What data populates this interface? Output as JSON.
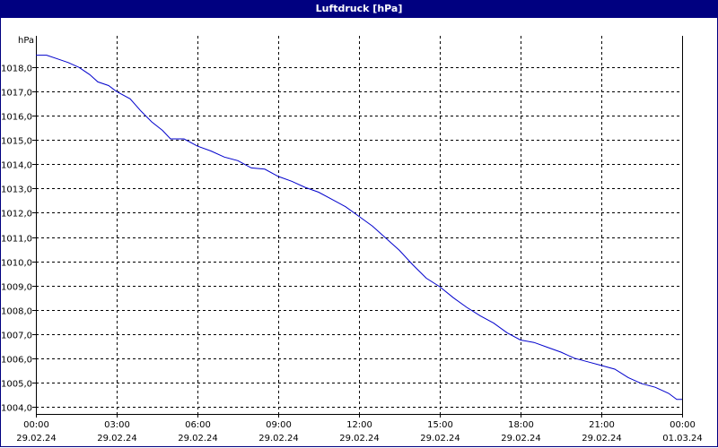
{
  "window": {
    "title": "Luftdruck [hPa]"
  },
  "colors": {
    "titlebar": "#000080",
    "series": "#0000cc",
    "grid": "#000000"
  },
  "chart_data": {
    "type": "line",
    "title": "Luftdruck [hPa]",
    "ylabel": "hPa",
    "xlabel": "",
    "ylim": [
      1003.7,
      1019.3
    ],
    "xlim_hours": [
      0,
      24
    ],
    "grid": true,
    "grid_style": "dashed",
    "legend": "none",
    "x_ticks": [
      {
        "hours": 0,
        "time": "00:00",
        "date": "29.02.24"
      },
      {
        "hours": 3,
        "time": "03:00",
        "date": "29.02.24"
      },
      {
        "hours": 6,
        "time": "06:00",
        "date": "29.02.24"
      },
      {
        "hours": 9,
        "time": "09:00",
        "date": "29.02.24"
      },
      {
        "hours": 12,
        "time": "12:00",
        "date": "29.02.24"
      },
      {
        "hours": 15,
        "time": "15:00",
        "date": "29.02.24"
      },
      {
        "hours": 18,
        "time": "18:00",
        "date": "29.02.24"
      },
      {
        "hours": 21,
        "time": "21:00",
        "date": "29.02.24"
      },
      {
        "hours": 24,
        "time": "00:00",
        "date": "01.03.24"
      }
    ],
    "y_ticks": [
      {
        "value": 1018,
        "label": "1018,0"
      },
      {
        "value": 1017,
        "label": "1017,0"
      },
      {
        "value": 1016,
        "label": "1016,0"
      },
      {
        "value": 1015,
        "label": "1015,0"
      },
      {
        "value": 1014,
        "label": "1014,0"
      },
      {
        "value": 1013,
        "label": "1013,0"
      },
      {
        "value": 1012,
        "label": "1012,0"
      },
      {
        "value": 1011,
        "label": "1011,0"
      },
      {
        "value": 1010,
        "label": "1010,0"
      },
      {
        "value": 1009,
        "label": "1009,0"
      },
      {
        "value": 1008,
        "label": "1008,0"
      },
      {
        "value": 1007,
        "label": "1007,0"
      },
      {
        "value": 1006,
        "label": "1006,0"
      },
      {
        "value": 1005,
        "label": "1005,0"
      },
      {
        "value": 1004,
        "label": "1004,0"
      }
    ],
    "series": [
      {
        "points": [
          [
            0.0,
            1018.5
          ],
          [
            0.4,
            1018.5
          ],
          [
            0.8,
            1018.35
          ],
          [
            1.2,
            1018.2
          ],
          [
            1.6,
            1018.0
          ],
          [
            2.0,
            1017.7
          ],
          [
            2.3,
            1017.4
          ],
          [
            2.7,
            1017.25
          ],
          [
            3.0,
            1017.0
          ],
          [
            3.5,
            1016.7
          ],
          [
            3.9,
            1016.2
          ],
          [
            4.3,
            1015.75
          ],
          [
            4.7,
            1015.4
          ],
          [
            5.0,
            1015.05
          ],
          [
            5.5,
            1015.05
          ],
          [
            6.0,
            1014.75
          ],
          [
            6.5,
            1014.55
          ],
          [
            7.0,
            1014.3
          ],
          [
            7.5,
            1014.15
          ],
          [
            8.0,
            1013.85
          ],
          [
            8.5,
            1013.8
          ],
          [
            9.0,
            1013.5
          ],
          [
            9.5,
            1013.3
          ],
          [
            10.0,
            1013.05
          ],
          [
            10.5,
            1012.85
          ],
          [
            11.0,
            1012.55
          ],
          [
            11.5,
            1012.25
          ],
          [
            12.0,
            1011.85
          ],
          [
            12.5,
            1011.45
          ],
          [
            13.0,
            1010.95
          ],
          [
            13.5,
            1010.45
          ],
          [
            14.0,
            1009.85
          ],
          [
            14.5,
            1009.3
          ],
          [
            15.0,
            1008.95
          ],
          [
            15.5,
            1008.5
          ],
          [
            16.0,
            1008.1
          ],
          [
            16.5,
            1007.75
          ],
          [
            17.0,
            1007.45
          ],
          [
            17.5,
            1007.05
          ],
          [
            18.0,
            1006.75
          ],
          [
            18.5,
            1006.65
          ],
          [
            19.0,
            1006.45
          ],
          [
            19.5,
            1006.25
          ],
          [
            20.0,
            1006.0
          ],
          [
            20.5,
            1005.85
          ],
          [
            21.0,
            1005.7
          ],
          [
            21.5,
            1005.55
          ],
          [
            22.0,
            1005.2
          ],
          [
            22.5,
            1004.95
          ],
          [
            23.0,
            1004.8
          ],
          [
            23.5,
            1004.55
          ],
          [
            23.8,
            1004.3
          ],
          [
            24.0,
            1004.3
          ]
        ]
      }
    ]
  }
}
